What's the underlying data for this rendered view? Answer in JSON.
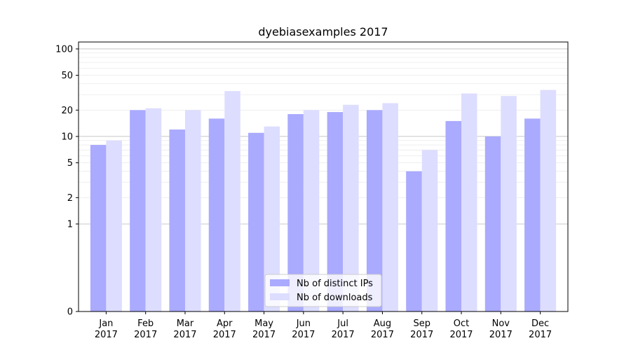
{
  "chart_data": {
    "type": "bar",
    "title": "dyebiasexamples 2017",
    "xlabel": "",
    "ylabel": "",
    "y_scale": "symlog",
    "ylim": [
      0,
      120
    ],
    "yticks": [
      0,
      1,
      2,
      5,
      10,
      20,
      50,
      100
    ],
    "ytick_labels": [
      "0",
      "1",
      "2",
      "5",
      "10",
      "20",
      "50",
      "100"
    ],
    "categories": [
      "Jan\n2017",
      "Feb\n2017",
      "Mar\n2017",
      "Apr\n2017",
      "May\n2017",
      "Jun\n2017",
      "Jul\n2017",
      "Aug\n2017",
      "Sep\n2017",
      "Oct\n2017",
      "Nov\n2017",
      "Dec\n2017"
    ],
    "category_lines": [
      [
        "Jan",
        "2017"
      ],
      [
        "Feb",
        "2017"
      ],
      [
        "Mar",
        "2017"
      ],
      [
        "Apr",
        "2017"
      ],
      [
        "May",
        "2017"
      ],
      [
        "Jun",
        "2017"
      ],
      [
        "Jul",
        "2017"
      ],
      [
        "Aug",
        "2017"
      ],
      [
        "Sep",
        "2017"
      ],
      [
        "Oct",
        "2017"
      ],
      [
        "Nov",
        "2017"
      ],
      [
        "Dec",
        "2017"
      ]
    ],
    "series": [
      {
        "name": "Nb of distinct IPs",
        "color": "#aaaaff",
        "values": [
          8,
          20,
          12,
          16,
          11,
          18,
          19,
          20,
          4,
          15,
          10,
          16
        ]
      },
      {
        "name": "Nb of downloads",
        "color": "#ddddff",
        "values": [
          9,
          21,
          20,
          33,
          13,
          20,
          23,
          24,
          7,
          31,
          29,
          34
        ]
      }
    ],
    "grid": "y major and minor",
    "legend_position": "bottom-center"
  }
}
